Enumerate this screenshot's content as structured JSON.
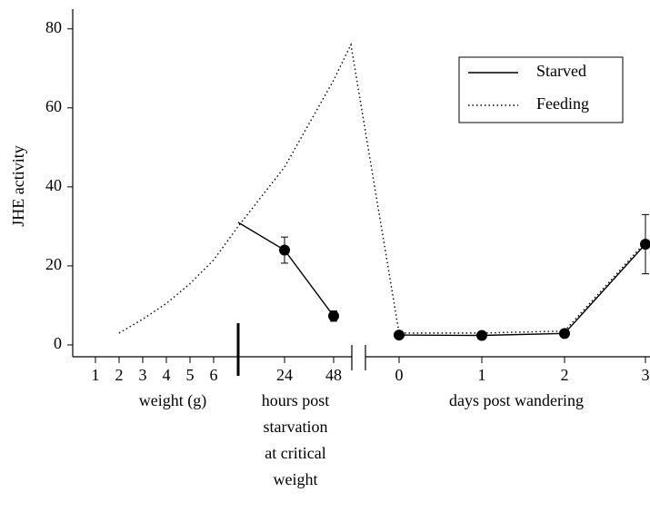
{
  "chart_data": {
    "type": "line",
    "ylabel": "JHE activity",
    "categories": [
      "1",
      "2",
      "3",
      "4",
      "5",
      "6",
      null,
      "24",
      "48",
      null,
      "0",
      "1",
      "2",
      "3"
    ],
    "group_labels": [
      [
        "weight (g)"
      ],
      [
        "hours post",
        "starvation",
        "at critical",
        "weight"
      ],
      [
        "days post wandering"
      ]
    ],
    "series": [
      {
        "name": "Starved",
        "color": "#000000",
        "style": "solid",
        "values": [
          null,
          null,
          null,
          null,
          null,
          null,
          31,
          24,
          7.3,
          null,
          2.5,
          2.4,
          2.9,
          25.5
        ],
        "errors": [
          null,
          null,
          null,
          null,
          null,
          null,
          null,
          3.3,
          1.3,
          null,
          null,
          null,
          null,
          7.5
        ]
      },
      {
        "name": "Feeding",
        "color": "#000000",
        "style": "dotted",
        "values": [
          null,
          3,
          6.5,
          10.5,
          15.5,
          21.5,
          30,
          45,
          67,
          76,
          3,
          3,
          3.5,
          26
        ]
      }
    ],
    "ylim": [
      -3,
      85
    ],
    "yticks": [
      0,
      20,
      40,
      60,
      80
    ],
    "legend": "upper right"
  }
}
